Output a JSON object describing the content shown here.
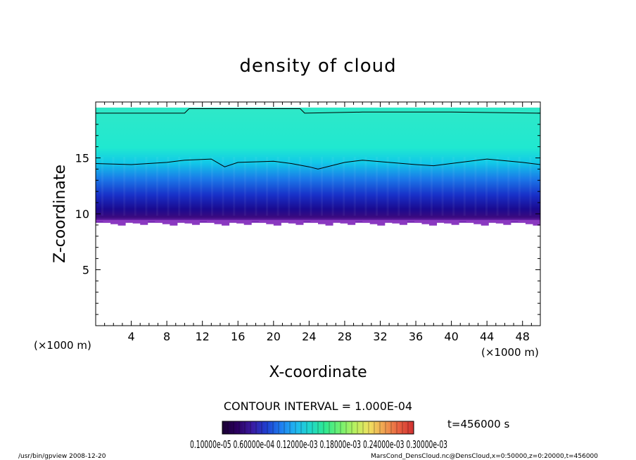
{
  "chart_data": {
    "type": "heatmap",
    "title": "density of cloud",
    "xlabel": "X-coordinate",
    "ylabel": "Z-coordinate",
    "x_unit": "(×1000 m)",
    "y_unit": "(×1000 m)",
    "xlim": [
      0,
      50
    ],
    "ylim": [
      0,
      20
    ],
    "xticks": [
      4,
      8,
      12,
      16,
      20,
      24,
      28,
      32,
      36,
      40,
      44,
      48
    ],
    "yticks": [
      5,
      10,
      15
    ],
    "cloud_base_z": 9.2,
    "cloud_top_z": 19.5,
    "contour_lines": [
      {
        "label": "upper",
        "x": [
          0,
          10,
          10.5,
          23,
          23.5,
          30,
          40,
          50
        ],
        "z": [
          19.0,
          19.0,
          19.4,
          19.4,
          19.0,
          19.1,
          19.1,
          19.0
        ]
      },
      {
        "label": "lower",
        "x": [
          0,
          4,
          8,
          10,
          13,
          14.5,
          16,
          20,
          22,
          24,
          25,
          28,
          30,
          36,
          38,
          44,
          48,
          50
        ],
        "z": [
          14.5,
          14.4,
          14.6,
          14.8,
          14.9,
          14.2,
          14.6,
          14.7,
          14.5,
          14.2,
          14.0,
          14.6,
          14.8,
          14.4,
          14.3,
          14.9,
          14.6,
          14.4
        ]
      }
    ],
    "contour_interval": "CONTOUR INTERVAL = 1.000E-04",
    "time_label": "t=456000 s",
    "colorbar_labels": "0.10000e-05 0.60000e-04 0.12000e-03 0.18000e-03 0.24000e-03 0.30000e-03",
    "colorbar_colors": [
      "#1a0033",
      "#2b0060",
      "#3a1aa0",
      "#1f3fd0",
      "#1f7ff0",
      "#20b8f0",
      "#20d8c8",
      "#30e890",
      "#70f070",
      "#b8f060",
      "#f0e060",
      "#f0a050",
      "#e86040",
      "#d03030"
    ]
  },
  "footer": {
    "left": "/usr/bin/gpview   2008-12-20",
    "right": "MarsCond_DensCloud.nc@DensCloud,x=0:50000,z=0:20000,t=456000"
  }
}
